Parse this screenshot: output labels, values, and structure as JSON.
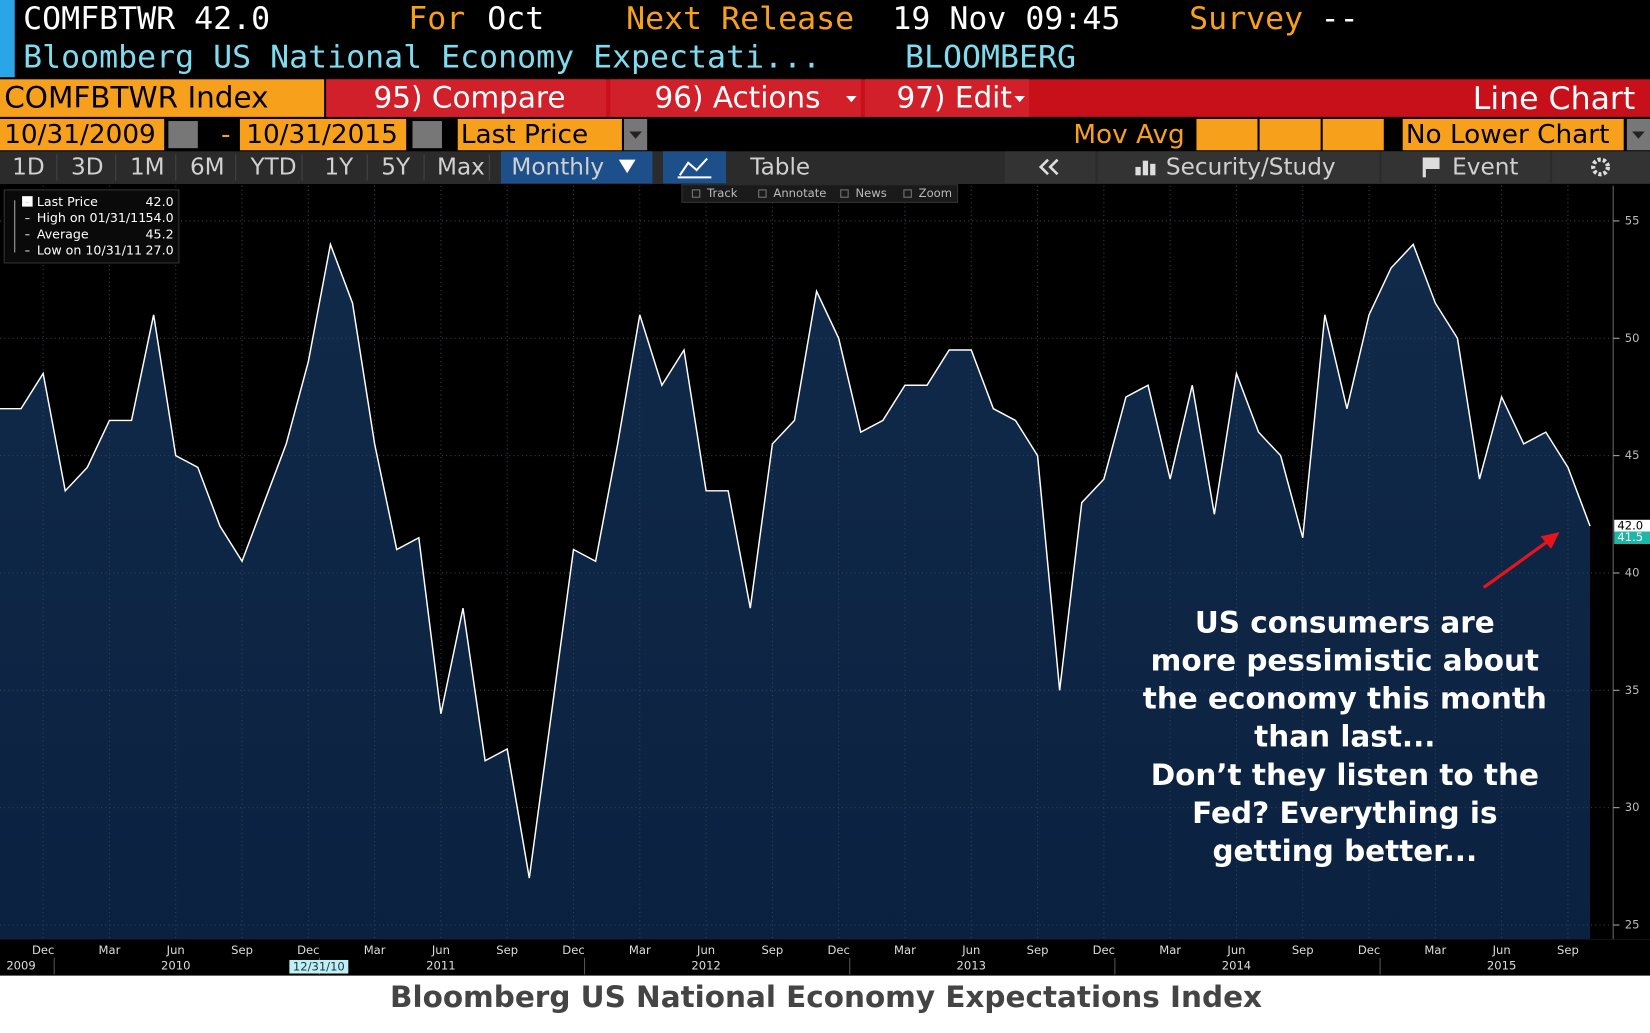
{
  "header": {
    "ticker": "COMFBTWR 42.0",
    "for_label": "For",
    "for_value": "Oct",
    "release_label": "Next Release",
    "release_value": "19 Nov 09:45",
    "survey_label": "Survey",
    "survey_value": "--",
    "name": "Bloomberg US National Economy Expectati...",
    "source": "BLOOMBERG"
  },
  "command": {
    "security": "COMFBTWR Index",
    "compare": "95) Compare",
    "actions": "96) Actions",
    "edit": "97) Edit",
    "view": "Line Chart"
  },
  "options": {
    "start": "10/31/2009",
    "sep": "-",
    "end": "10/31/2015",
    "field": "Last Price",
    "mov_avg": "Mov Avg",
    "lower": "No Lower Chart"
  },
  "toolbar": {
    "periods": [
      "1D",
      "3D",
      "1M",
      "6M",
      "YTD",
      "1Y",
      "5Y",
      "Max"
    ],
    "frequency": "Monthly",
    "table": "Table",
    "security_study": "Security/Study",
    "event": "Event",
    "tools": [
      "Track",
      "Annotate",
      "News",
      "Zoom"
    ]
  },
  "legend": [
    {
      "label": "Last Price",
      "value": "42.0"
    },
    {
      "label": "High on 01/31/11",
      "value": "54.0"
    },
    {
      "label": "Average",
      "value": "45.2"
    },
    {
      "label": "Low on 10/31/11",
      "value": "27.0"
    }
  ],
  "chart_data": {
    "type": "area",
    "title": "Bloomberg US National Economy Expectations Index",
    "categories": [
      null,
      null,
      "Dec",
      null,
      null,
      "Mar",
      null,
      null,
      "Jun",
      null,
      null,
      "Sep",
      null,
      null,
      "Dec",
      null,
      null,
      "Mar",
      null,
      null,
      "Jun",
      null,
      null,
      "Sep",
      null,
      null,
      "Dec",
      null,
      null,
      "Mar",
      null,
      null,
      "Jun",
      null,
      null,
      "Sep",
      null,
      null,
      "Dec",
      null,
      null,
      "Mar",
      null,
      null,
      "Jun",
      null,
      null,
      "Sep",
      null,
      null,
      "Dec",
      null,
      null,
      "Mar",
      null,
      null,
      "Jun",
      null,
      null,
      "Sep",
      null,
      null,
      "Dec",
      null,
      null,
      "Mar",
      null,
      null,
      "Jun",
      null,
      null,
      "Sep",
      null
    ],
    "years": [
      "2009",
      "2010",
      "2011",
      "2012",
      "2013",
      "2014",
      "2015"
    ],
    "cursor_label": "12/31/10",
    "values": [
      47.0,
      47.0,
      48.5,
      43.5,
      44.5,
      46.5,
      46.5,
      51.0,
      45.0,
      44.5,
      42.0,
      40.5,
      43.0,
      45.5,
      49.0,
      54.0,
      51.5,
      45.5,
      41.0,
      41.5,
      34.0,
      38.5,
      32.0,
      32.5,
      27.0,
      34.0,
      41.0,
      40.5,
      45.5,
      51.0,
      48.0,
      49.5,
      43.5,
      43.5,
      38.5,
      45.5,
      46.5,
      52.0,
      50.0,
      46.0,
      46.5,
      48.0,
      48.0,
      49.5,
      49.5,
      47.0,
      46.5,
      45.0,
      35.0,
      43.0,
      44.0,
      47.5,
      48.0,
      44.0,
      48.0,
      42.5,
      48.5,
      46.0,
      45.0,
      41.5,
      51.0,
      47.0,
      51.0,
      53.0,
      54.0,
      51.5,
      50.0,
      44.0,
      47.5,
      45.5,
      46.0,
      44.5,
      42.0
    ],
    "color": "#ffffff",
    "fill": "#112a4a",
    "ylim": [
      24.4,
      56.5
    ],
    "yticks": [
      25,
      30,
      35,
      40,
      45,
      50,
      55
    ],
    "grid": true,
    "price_tags": [
      {
        "value": 42.0,
        "label": "42.0"
      },
      {
        "value": 41.5,
        "label": "41.5"
      }
    ],
    "annotation": [
      "US consumers are",
      "more pessimistic about",
      "the economy this month",
      "than last...",
      "Don’t they listen to the",
      "Fed?  Everything is",
      "getting better..."
    ]
  }
}
